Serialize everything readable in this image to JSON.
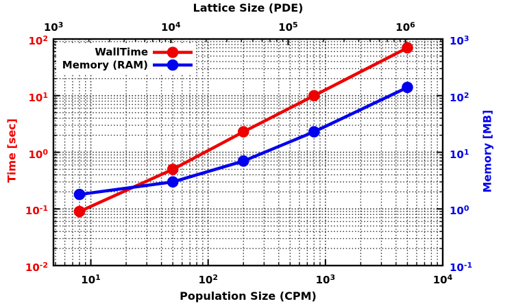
{
  "title_top": "Lattice Size (PDE)",
  "xlabel_bottom": "Population Size (CPM)",
  "ylabel_left": "Time [sec]",
  "ylabel_right": "Memory [MB]",
  "colors": {
    "walltime": "#ee0000",
    "memory": "#0000ee",
    "grid": "#1a1a1a",
    "frame": "#000000",
    "tick_label_bottom_top": "#000000"
  },
  "legend": [
    {
      "label": "WallTime",
      "series": "walltime"
    },
    {
      "label": "Memory (RAM)",
      "series": "memory"
    }
  ],
  "axes": {
    "bottom": {
      "tick_exponents": [
        1,
        2,
        3,
        4
      ]
    },
    "top": {
      "tick_exponents": [
        3,
        4,
        5,
        6
      ]
    },
    "left": {
      "tick_exponents": [
        2,
        1,
        0,
        -1,
        -2
      ]
    },
    "right": {
      "tick_exponents": [
        3,
        2,
        1,
        0,
        -1
      ]
    }
  },
  "chart_data": {
    "type": "line",
    "title": "Lattice Size (PDE)",
    "xlabel": "Population Size (CPM)",
    "ylabel_left": "Time [sec]",
    "ylabel_right": "Memory [MB]",
    "x_scale": "log",
    "y_scale": "log",
    "x": [
      8,
      50,
      200,
      800,
      5000
    ],
    "series": [
      {
        "name": "WallTime",
        "axis": "left",
        "color": "#ee0000",
        "values": [
          0.09,
          0.5,
          2.3,
          10,
          70
        ]
      },
      {
        "name": "Memory (RAM)",
        "axis": "right",
        "color": "#0000ee",
        "values": [
          1.8,
          3.0,
          7.0,
          23,
          140
        ]
      }
    ],
    "xlim": [
      4.8,
      10000
    ],
    "x2lim": [
      1000,
      2080000
    ],
    "x2_over_x1": 208,
    "ylim_left": [
      0.01,
      100
    ],
    "ylim_right": [
      0.1,
      1000
    ],
    "grid": "dotted, major and minor log lines",
    "legend_position": "top-left inside, no border, white background",
    "marker": "filled circle"
  }
}
